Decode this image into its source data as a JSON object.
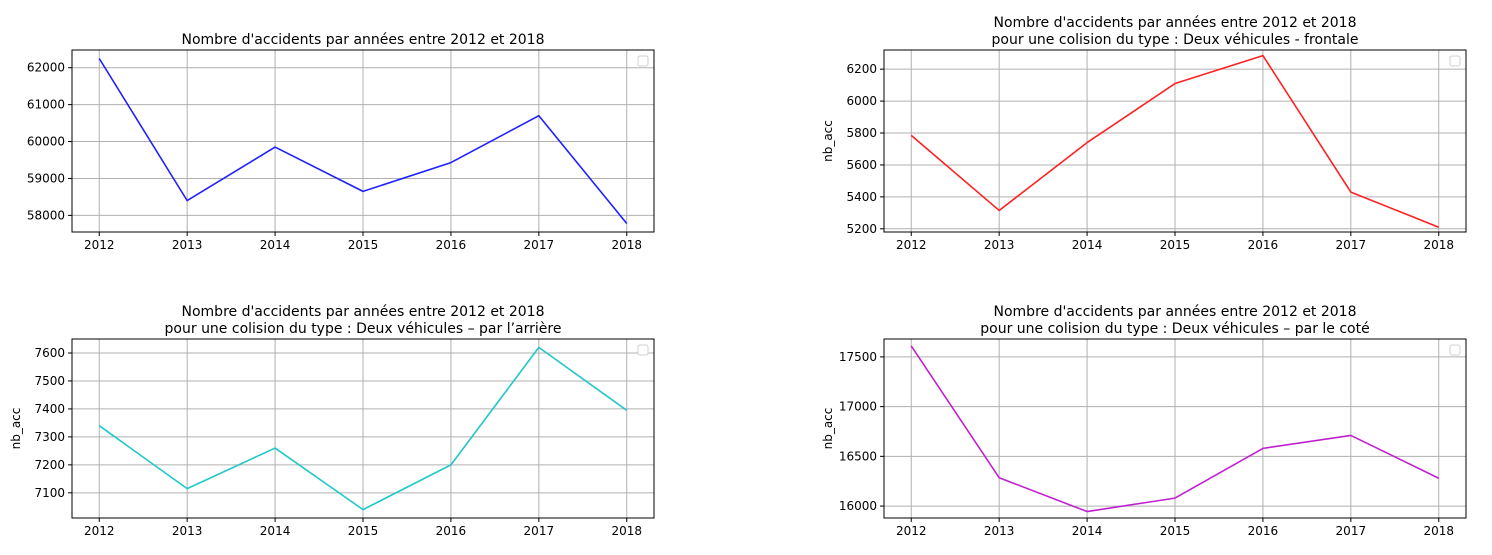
{
  "chart_data": [
    {
      "type": "line",
      "title_lines": [
        "Nombre d'accidents par années entre 2012 et 2018"
      ],
      "xlabel": "",
      "ylabel": "",
      "x": [
        2012,
        2013,
        2014,
        2015,
        2016,
        2017,
        2018
      ],
      "series": [
        {
          "values": [
            62250,
            58400,
            59850,
            58650,
            59430,
            60700,
            57780
          ]
        }
      ],
      "xlim": [
        2011.69,
        2018.31
      ],
      "ylim": [
        57550,
        62480
      ],
      "yticks": [
        58000,
        59000,
        60000,
        61000,
        62000
      ],
      "color": "#2020ff",
      "grid": true,
      "legend": "top-right"
    },
    {
      "type": "line",
      "title_lines": [
        "Nombre d'accidents par années entre 2012 et 2018",
        "pour une colision du type : Deux véhicules - frontale"
      ],
      "xlabel": "",
      "ylabel": "nb_acc",
      "x": [
        2012,
        2013,
        2014,
        2015,
        2016,
        2017,
        2018
      ],
      "series": [
        {
          "values": [
            5785,
            5315,
            5740,
            6110,
            6285,
            5430,
            5210
          ]
        }
      ],
      "xlim": [
        2011.69,
        2018.31
      ],
      "ylim": [
        5180,
        6320
      ],
      "yticks": [
        5200,
        5400,
        5600,
        5800,
        6000,
        6200
      ],
      "color": "#ff2020",
      "grid": true,
      "legend": "top-right"
    },
    {
      "type": "line",
      "title_lines": [
        "Nombre d'accidents par années entre 2012 et 2018",
        "pour une colision du type : Deux véhicules – par l’arrière"
      ],
      "xlabel": "",
      "ylabel": "nb_acc",
      "x": [
        2012,
        2013,
        2014,
        2015,
        2016,
        2017,
        2018
      ],
      "series": [
        {
          "values": [
            7340,
            7115,
            7260,
            7040,
            7200,
            7620,
            7395
          ]
        }
      ],
      "xlim": [
        2011.69,
        2018.31
      ],
      "ylim": [
        7010,
        7650
      ],
      "yticks": [
        7100,
        7200,
        7300,
        7400,
        7500,
        7600
      ],
      "color": "#20c8c8",
      "grid": true,
      "legend": "top-right"
    },
    {
      "type": "line",
      "title_lines": [
        "Nombre d'accidents par années entre 2012 et 2018",
        "pour une colision du type : Deux véhicules – par le coté"
      ],
      "xlabel": "",
      "ylabel": "nb_acc",
      "x": [
        2012,
        2013,
        2014,
        2015,
        2016,
        2017,
        2018
      ],
      "series": [
        {
          "values": [
            17610,
            16285,
            15945,
            16080,
            16580,
            16710,
            16280
          ]
        }
      ],
      "xlim": [
        2011.69,
        2018.31
      ],
      "ylim": [
        15880,
        17680
      ],
      "yticks": [
        16000,
        16500,
        17000,
        17500
      ],
      "color": "#c020d0",
      "grid": true,
      "legend": "top-right"
    }
  ]
}
